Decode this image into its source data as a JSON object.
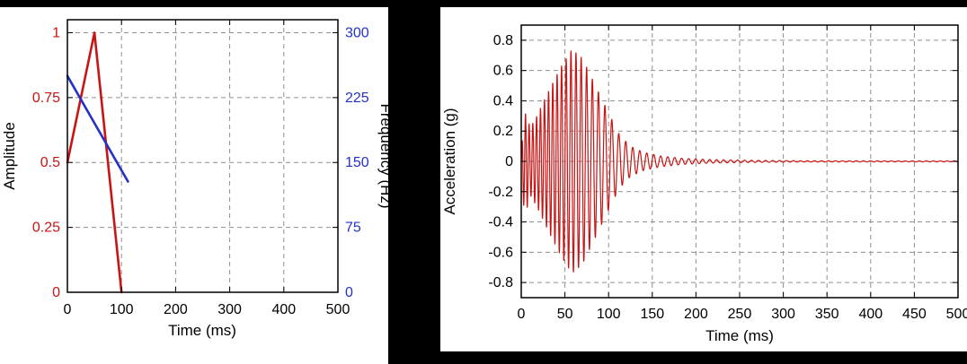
{
  "colors": {
    "page_background": "#000000",
    "panel_background": "#ffffff",
    "grid": "#8f8f8f",
    "frame": "#000000",
    "tick_label": "#000000",
    "amplitude_red": "#c81414",
    "frequency_blue": "#2431c4"
  },
  "chart_data": [
    {
      "id": "input-signal",
      "type": "line",
      "xlabel": "Time (ms)",
      "xlim": [
        0,
        500
      ],
      "xtick_values": [
        0,
        100,
        200,
        300,
        400,
        500
      ],
      "xtick_labels": [
        "0",
        "100",
        "200",
        "300",
        "400",
        "500"
      ],
      "grid": true,
      "left_axis": {
        "label": "Amplitude",
        "color": "#c81414",
        "lim": [
          0,
          1.05
        ],
        "tick_values": [
          0,
          0.25,
          0.5,
          0.75,
          1
        ],
        "tick_labels": [
          "0",
          "0.25",
          "0.5",
          "0.75",
          "1"
        ]
      },
      "right_axis": {
        "label": "Frequency (Hz)",
        "color": "#2431c4",
        "lim": [
          0,
          315
        ],
        "tick_values": [
          0,
          75,
          150,
          225,
          300
        ],
        "tick_labels": [
          "0",
          "75",
          "150",
          "225",
          "300"
        ]
      },
      "series": [
        {
          "name": "amplitude-envelope",
          "axis": "left",
          "color": "#c81414",
          "points": [
            [
              0,
              0.5
            ],
            [
              50,
              1.0
            ],
            [
              100,
              0.0
            ]
          ]
        },
        {
          "name": "frequency-sweep",
          "axis": "right",
          "color": "#2431c4",
          "points": [
            [
              0,
              250
            ],
            [
              112,
              128
            ]
          ]
        }
      ]
    },
    {
      "id": "acceleration-response",
      "type": "line",
      "xlabel": "Time (ms)",
      "ylabel": "Acceleration (g)",
      "xlim": [
        0,
        500
      ],
      "xtick_values": [
        0,
        50,
        100,
        150,
        200,
        250,
        300,
        350,
        400,
        450,
        500
      ],
      "xtick_labels": [
        "0",
        "50",
        "100",
        "150",
        "200",
        "250",
        "300",
        "350",
        "400",
        "450",
        "500"
      ],
      "ylim": [
        -0.9,
        0.9
      ],
      "ytick_values": [
        -0.8,
        -0.6,
        -0.4,
        -0.2,
        0,
        0.2,
        0.4,
        0.6,
        0.8
      ],
      "ytick_labels": [
        "-0.8",
        "-0.6",
        "-0.4",
        "-0.2",
        "0",
        "0.2",
        "0.4",
        "0.6",
        "0.8"
      ],
      "grid": true,
      "series": [
        {
          "name": "acceleration-waveform",
          "color": "#c81414",
          "synthesis": {
            "kind": "swept-sine-burst",
            "freq_start_hz": 250,
            "freq_end_hz": 125,
            "sweep_end_ms": 100,
            "sample_step_ms": 0.2,
            "peak_g": 0.74,
            "envelope_points": [
              [
                0,
                0
              ],
              [
                2,
                0.28
              ],
              [
                6,
                0.33
              ],
              [
                10,
                0.22
              ],
              [
                18,
                0.3
              ],
              [
                30,
                0.45
              ],
              [
                45,
                0.62
              ],
              [
                58,
                0.74
              ],
              [
                70,
                0.68
              ],
              [
                85,
                0.5
              ],
              [
                100,
                0.32
              ],
              [
                112,
                0.18
              ],
              [
                125,
                0.1
              ],
              [
                140,
                0.06
              ],
              [
                160,
                0.035
              ],
              [
                185,
                0.02
              ],
              [
                215,
                0.012
              ],
              [
                260,
                0.007
              ],
              [
                320,
                0.004
              ],
              [
                500,
                0.003
              ]
            ]
          }
        }
      ]
    }
  ]
}
